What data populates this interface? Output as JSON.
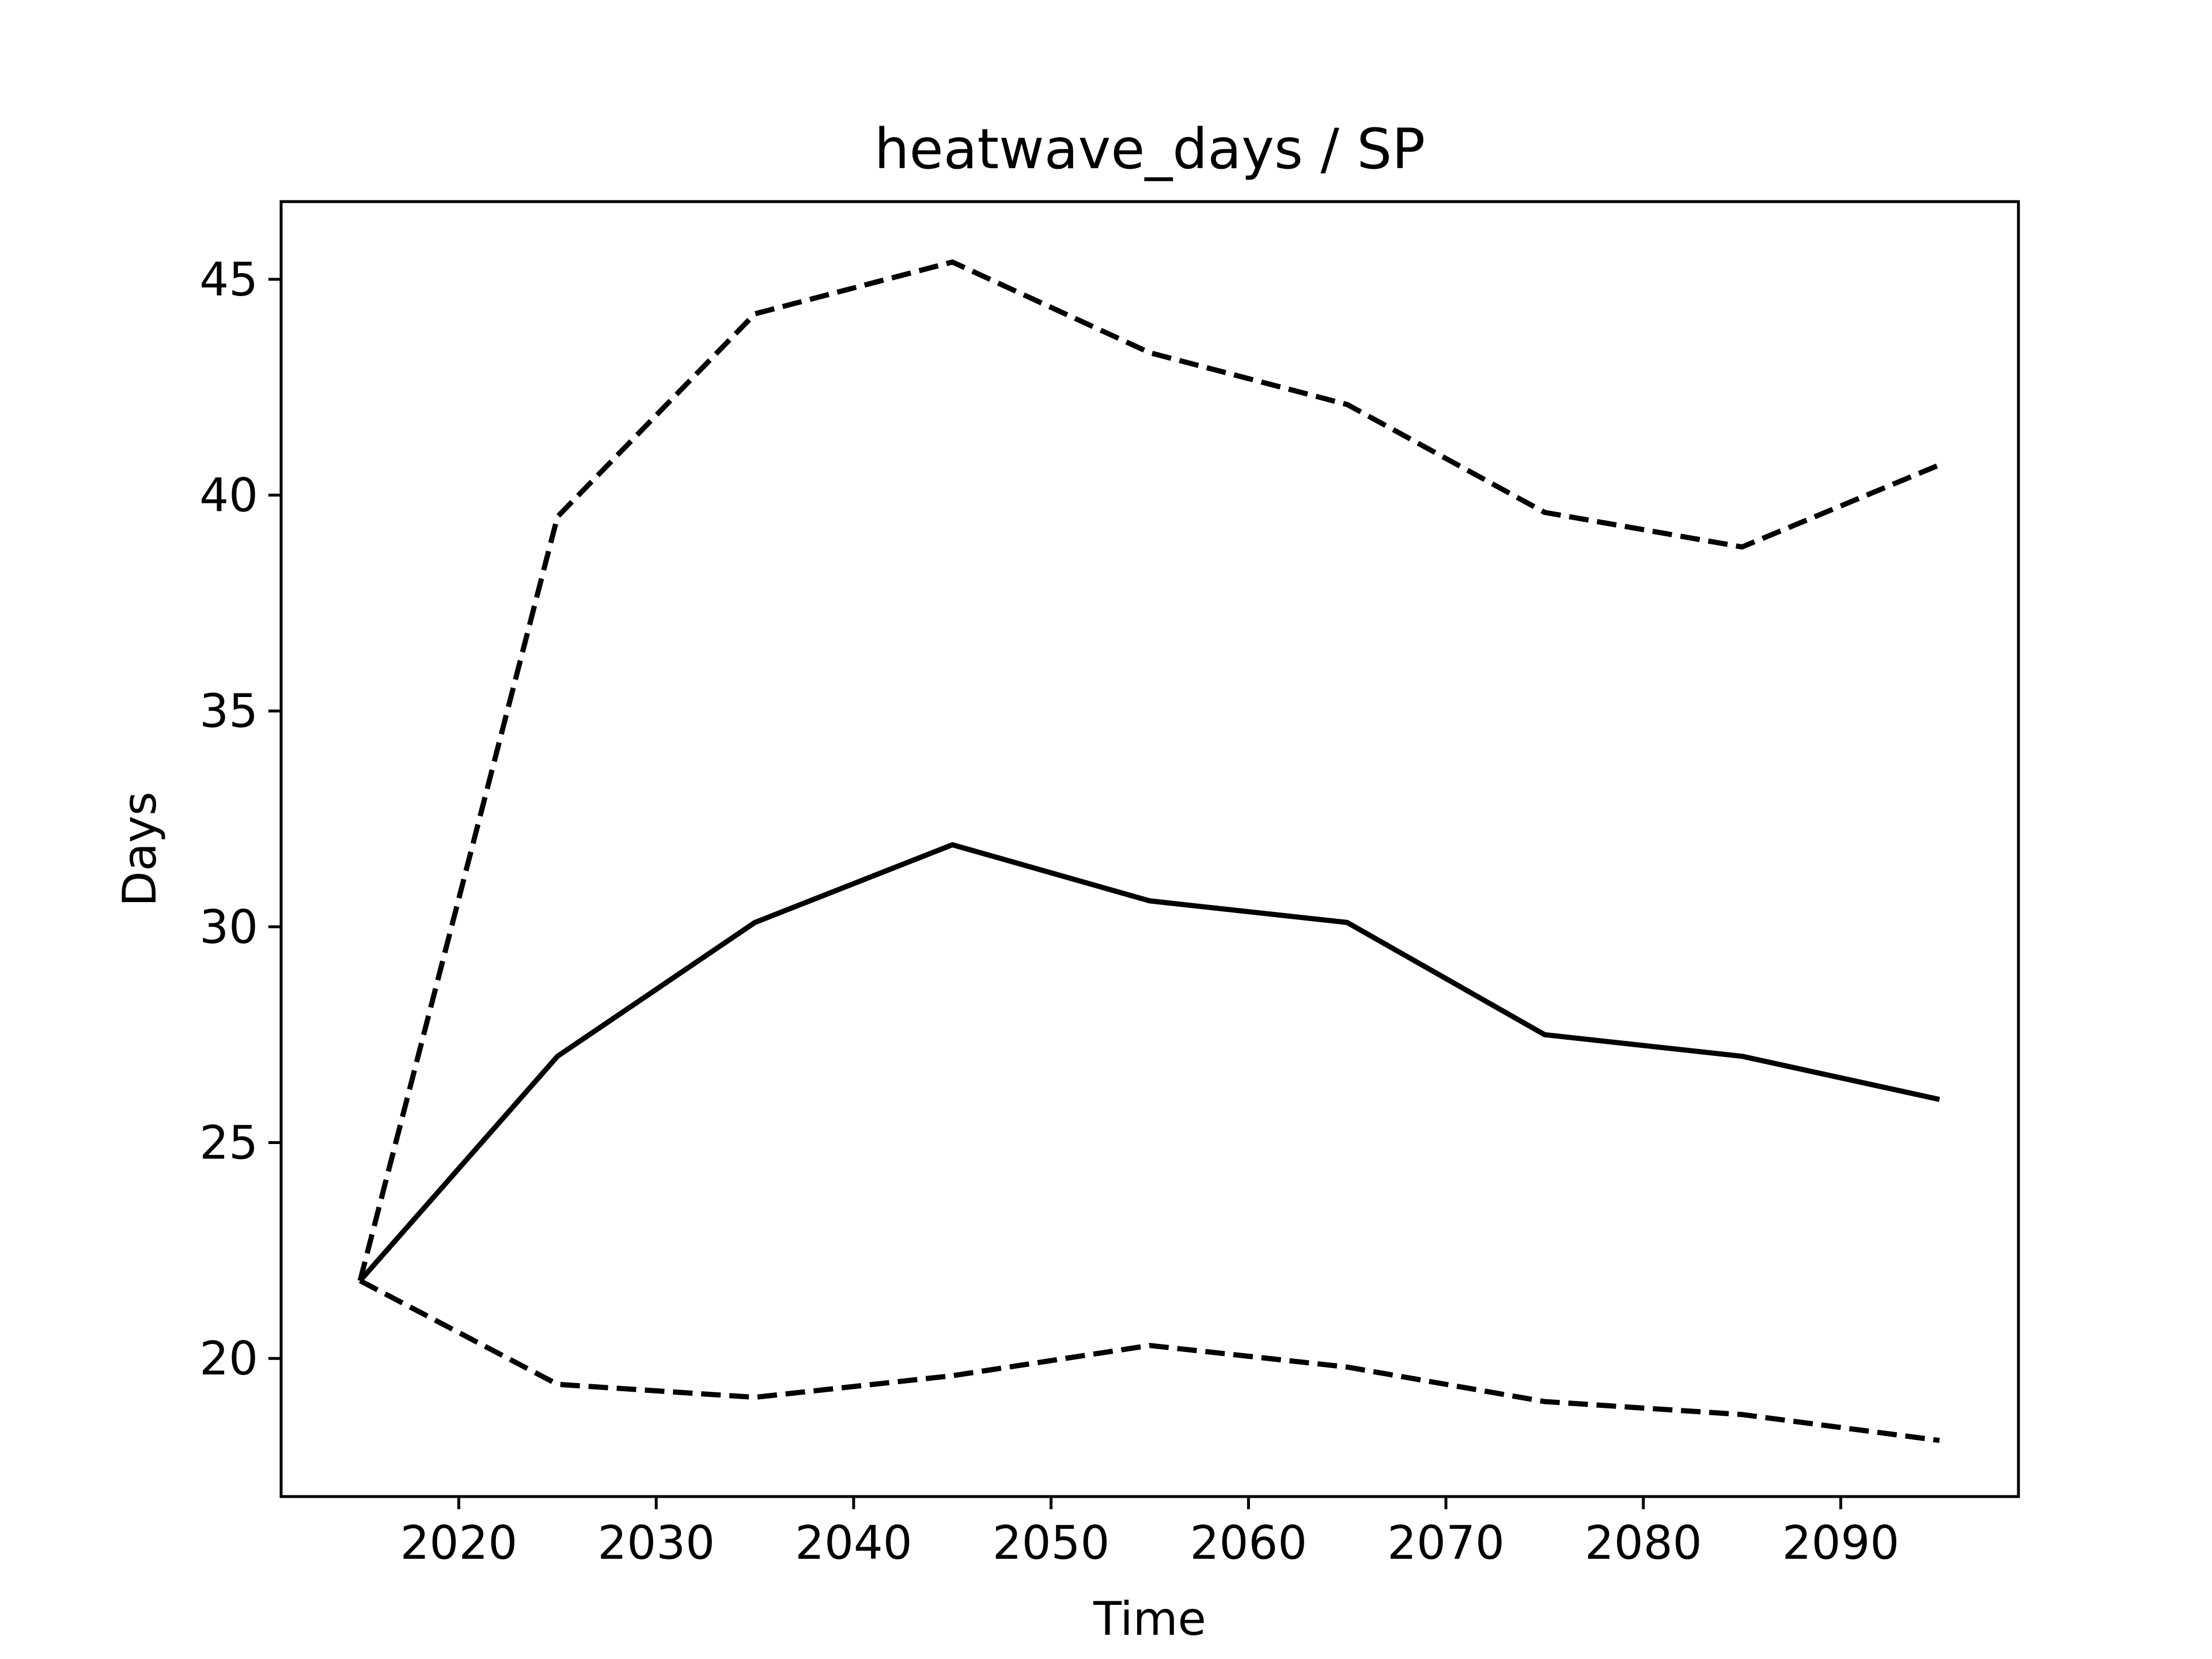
{
  "chart_data": {
    "type": "line",
    "title": "heatwave_days / SP",
    "xlabel": "Time",
    "ylabel": "Days",
    "xlim": [
      2011,
      2099
    ],
    "ylim": [
      16.8,
      46.8
    ],
    "xticks": [
      2020,
      2030,
      2040,
      2050,
      2060,
      2070,
      2080,
      2090
    ],
    "xtick_labels": [
      "2020",
      "2030",
      "2040",
      "2050",
      "2060",
      "2070",
      "2080",
      "2090"
    ],
    "yticks": [
      20,
      25,
      30,
      35,
      40,
      45
    ],
    "ytick_labels": [
      "20",
      "25",
      "30",
      "35",
      "40",
      "45"
    ],
    "grid": false,
    "line_color": "#000000",
    "x": [
      2015,
      2025,
      2035,
      2045,
      2055,
      2065,
      2075,
      2085,
      2095
    ],
    "series": [
      {
        "style": "dashed",
        "values": [
          21.8,
          39.5,
          44.2,
          45.4,
          43.3,
          42.1,
          39.6,
          38.8,
          40.7
        ]
      },
      {
        "style": "solid",
        "values": [
          21.8,
          27.0,
          30.1,
          31.9,
          30.6,
          30.1,
          27.5,
          27.0,
          26.0
        ]
      },
      {
        "style": "dashed",
        "values": [
          21.8,
          19.4,
          19.1,
          19.6,
          20.3,
          19.8,
          19.0,
          18.7,
          18.1
        ]
      }
    ]
  }
}
